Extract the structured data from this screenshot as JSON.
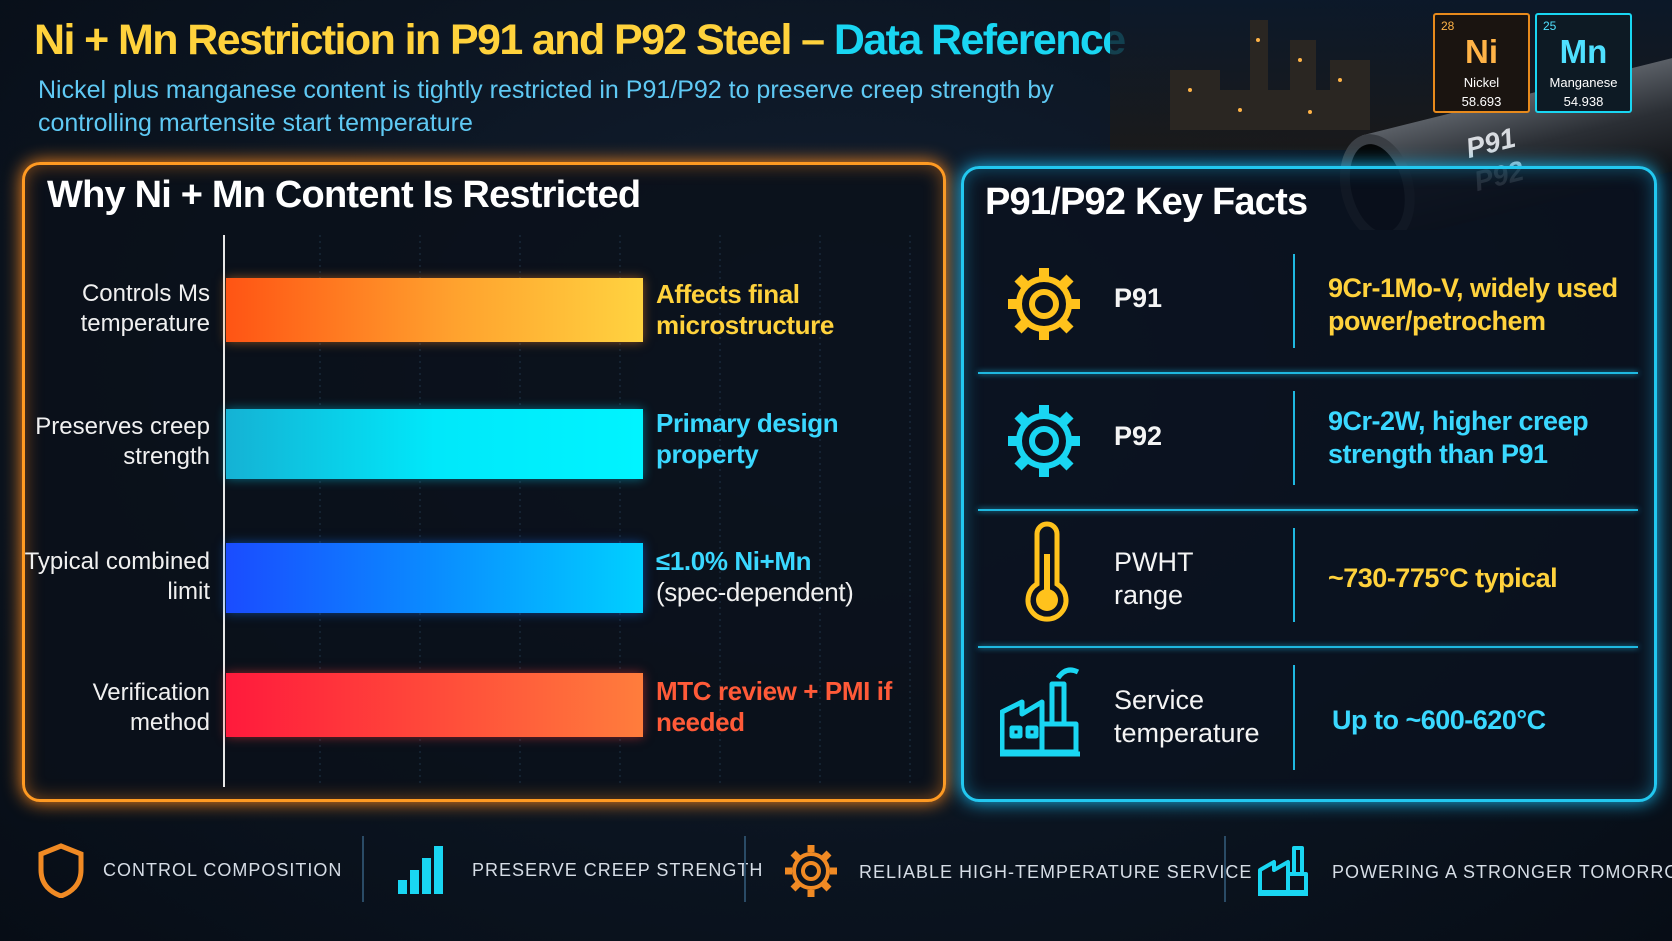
{
  "header": {
    "title_main": "Ni + Mn Restriction in P91 and P92 Steel –",
    "title_accent": "Data Reference",
    "subtitle": "Nickel plus manganese content is tightly restricted in P91/P92 to preserve creep strength by controlling martensite start temperature"
  },
  "elements": [
    {
      "number": "28",
      "symbol": "Ni",
      "name": "Nickel",
      "mass": "58.693"
    },
    {
      "number": "25",
      "symbol": "Mn",
      "name": "Manganese",
      "mass": "54.938"
    }
  ],
  "pipe_labels": [
    "P91",
    "P92"
  ],
  "left_panel": {
    "title": "Why Ni + Mn Content Is Restricted",
    "rows": [
      {
        "label": "Controls Ms temperature",
        "note": "Affects final microstructure"
      },
      {
        "label": "Preserves creep strength",
        "note": "Primary design property"
      },
      {
        "label": "Typical combined limit",
        "note": "≤1.0% Ni+Mn",
        "note_detail": "(spec-dependent)"
      },
      {
        "label": "Verification method",
        "note": "MTC review + PMI if needed"
      }
    ]
  },
  "right_panel": {
    "title": "P91/P92 Key Facts",
    "rows": [
      {
        "name": "P91",
        "description": "9Cr-1Mo-V, widely used power/petrochem"
      },
      {
        "name": "P92",
        "description": "9Cr-2W, higher creep strength than P91"
      },
      {
        "name": "PWHT range",
        "description": "~730-775°C typical"
      },
      {
        "name": "Service temperature",
        "description": "Up to ~600-620°C"
      }
    ]
  },
  "footer": [
    "CONTROL COMPOSITION",
    "PRESERVE CREEP STRENGTH",
    "RELIABLE HIGH-TEMPERATURE SERVICE",
    "POWERING A STRONGER TOMORROW"
  ]
}
